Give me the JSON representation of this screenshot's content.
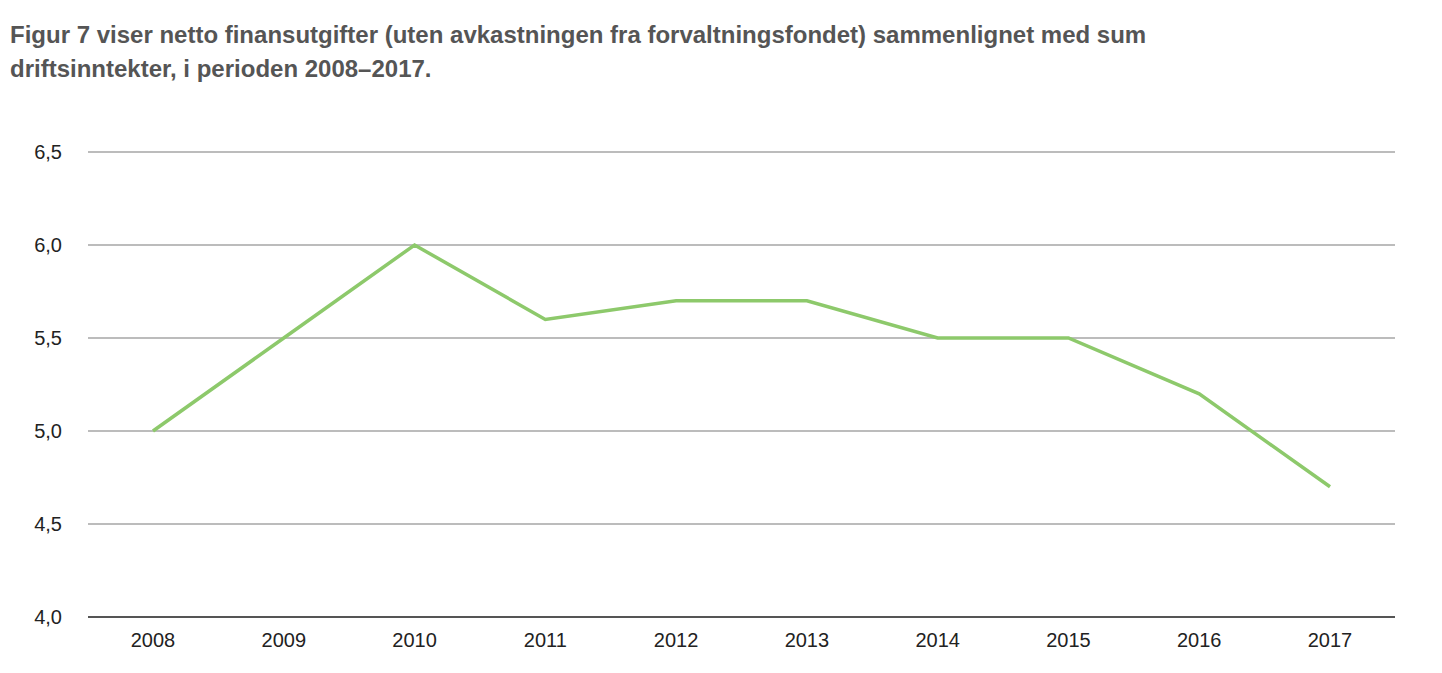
{
  "chart_data": {
    "type": "line",
    "title": "Figur 7 viser netto finansutgifter (uten avkastningen fra forvaltningsfondet) sammenlignet med sum driftsinntekter, i perioden 2008–2017.",
    "categories": [
      "2008",
      "2009",
      "2010",
      "2011",
      "2012",
      "2013",
      "2014",
      "2015",
      "2016",
      "2017"
    ],
    "values": [
      5.0,
      5.5,
      6.0,
      5.6,
      5.7,
      5.7,
      5.5,
      5.5,
      5.2,
      4.7
    ],
    "color": "#8dc96b",
    "ylim": [
      4.0,
      6.5
    ],
    "yticks": [
      {
        "value": 4.0,
        "label": "4,0"
      },
      {
        "value": 4.5,
        "label": "4,5"
      },
      {
        "value": 5.0,
        "label": "5,0"
      },
      {
        "value": 5.5,
        "label": "5,5"
      },
      {
        "value": 6.0,
        "label": "6,0"
      },
      {
        "value": 6.5,
        "label": "6,5"
      }
    ],
    "grid": true
  }
}
